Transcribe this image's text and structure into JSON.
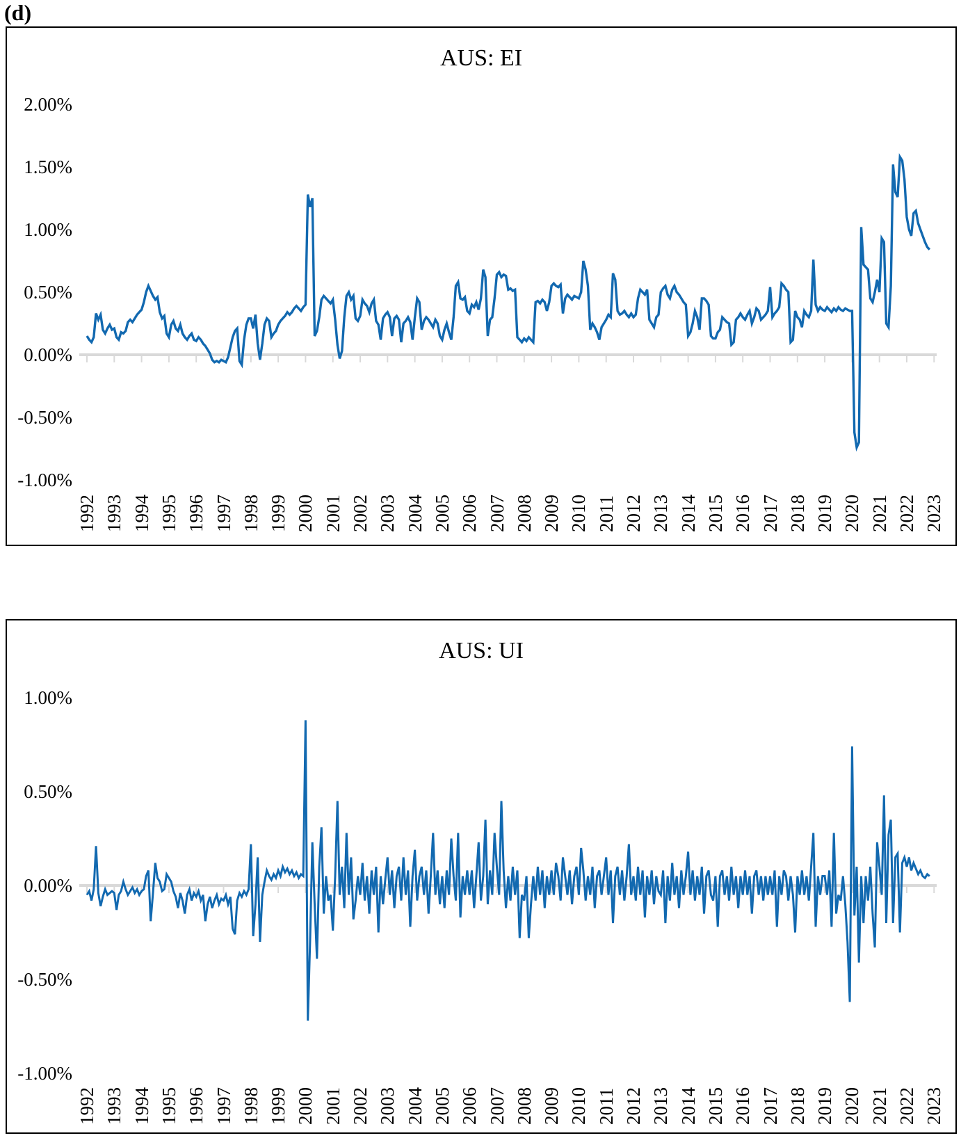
{
  "figure_label": "(d)",
  "colors": {
    "line": "#1269b0",
    "zero_axis": "#d9d9d9",
    "panel_border": "#000000",
    "text": "#000000"
  },
  "charts": [
    {
      "title": "AUS: EI",
      "y_ticks": [
        "2.00%",
        "1.50%",
        "1.00%",
        "0.50%",
        "0.00%",
        "-0.50%",
        "-1.00%"
      ],
      "x_ticks": [
        "1992",
        "1993",
        "1994",
        "1995",
        "1996",
        "1997",
        "1998",
        "1999",
        "2000",
        "2001",
        "2002",
        "2003",
        "2004",
        "2005",
        "2006",
        "2007",
        "2008",
        "2009",
        "2010",
        "2011",
        "2012",
        "2013",
        "2014",
        "2015",
        "2016",
        "2017",
        "2018",
        "2019",
        "2020",
        "2021",
        "2022",
        "2023"
      ]
    },
    {
      "title": "AUS: UI",
      "y_ticks": [
        "1.00%",
        "0.50%",
        "0.00%",
        "-0.50%",
        "-1.00%"
      ],
      "x_ticks": [
        "1992",
        "1993",
        "1994",
        "1995",
        "1996",
        "1997",
        "1998",
        "1999",
        "2000",
        "2001",
        "2002",
        "2003",
        "2004",
        "2005",
        "2006",
        "2007",
        "2008",
        "2009",
        "2010",
        "2011",
        "2012",
        "2013",
        "2014",
        "2015",
        "2016",
        "2017",
        "2018",
        "2019",
        "2020",
        "2021",
        "2022",
        "2023"
      ]
    }
  ],
  "chart_data": [
    {
      "type": "line",
      "title": "AUS: EI",
      "unit": "percent",
      "frequency": "monthly",
      "x_start": "1992-01",
      "x_end": "2022-11",
      "xlabel": "",
      "ylabel": "",
      "ylim": [
        -1.0,
        2.0
      ],
      "y_tick_values": [
        2.0,
        1.5,
        1.0,
        0.5,
        0.0,
        -0.5,
        -1.0
      ],
      "grid": false,
      "legend": "none",
      "values": [
        0.15,
        0.12,
        0.1,
        0.14,
        0.33,
        0.28,
        0.32,
        0.2,
        0.17,
        0.21,
        0.24,
        0.2,
        0.21,
        0.14,
        0.12,
        0.18,
        0.17,
        0.19,
        0.26,
        0.28,
        0.26,
        0.29,
        0.32,
        0.34,
        0.36,
        0.42,
        0.5,
        0.55,
        0.51,
        0.47,
        0.44,
        0.46,
        0.34,
        0.29,
        0.31,
        0.17,
        0.14,
        0.24,
        0.27,
        0.21,
        0.19,
        0.24,
        0.17,
        0.14,
        0.12,
        0.15,
        0.17,
        0.12,
        0.11,
        0.14,
        0.12,
        0.09,
        0.07,
        0.04,
        0.01,
        -0.04,
        -0.06,
        -0.05,
        -0.06,
        -0.04,
        -0.05,
        -0.06,
        -0.02,
        0.06,
        0.14,
        0.19,
        0.21,
        -0.05,
        -0.08,
        0.12,
        0.24,
        0.29,
        0.29,
        0.21,
        0.32,
        0.09,
        -0.04,
        0.09,
        0.24,
        0.29,
        0.27,
        0.14,
        0.17,
        0.19,
        0.24,
        0.27,
        0.29,
        0.31,
        0.34,
        0.32,
        0.34,
        0.37,
        0.39,
        0.37,
        0.35,
        0.38,
        0.4,
        1.28,
        1.18,
        1.25,
        0.15,
        0.19,
        0.3,
        0.44,
        0.47,
        0.45,
        0.43,
        0.41,
        0.44,
        0.28,
        0.08,
        -0.03,
        0.03,
        0.3,
        0.47,
        0.5,
        0.44,
        0.47,
        0.29,
        0.27,
        0.31,
        0.44,
        0.41,
        0.39,
        0.34,
        0.41,
        0.44,
        0.27,
        0.24,
        0.12,
        0.29,
        0.32,
        0.34,
        0.3,
        0.15,
        0.29,
        0.31,
        0.28,
        0.1,
        0.25,
        0.27,
        0.3,
        0.26,
        0.12,
        0.3,
        0.45,
        0.42,
        0.2,
        0.27,
        0.3,
        0.28,
        0.25,
        0.22,
        0.28,
        0.25,
        0.15,
        0.12,
        0.2,
        0.25,
        0.18,
        0.12,
        0.3,
        0.55,
        0.58,
        0.45,
        0.44,
        0.46,
        0.35,
        0.33,
        0.4,
        0.38,
        0.42,
        0.36,
        0.45,
        0.68,
        0.62,
        0.15,
        0.28,
        0.3,
        0.45,
        0.64,
        0.66,
        0.62,
        0.64,
        0.63,
        0.52,
        0.53,
        0.51,
        0.52,
        0.14,
        0.12,
        0.1,
        0.13,
        0.11,
        0.14,
        0.12,
        0.1,
        0.42,
        0.43,
        0.41,
        0.44,
        0.42,
        0.35,
        0.42,
        0.55,
        0.57,
        0.55,
        0.54,
        0.56,
        0.33,
        0.45,
        0.48,
        0.46,
        0.44,
        0.47,
        0.46,
        0.45,
        0.5,
        0.75,
        0.68,
        0.55,
        0.2,
        0.25,
        0.22,
        0.18,
        0.12,
        0.22,
        0.25,
        0.28,
        0.32,
        0.3,
        0.65,
        0.6,
        0.35,
        0.32,
        0.33,
        0.35,
        0.32,
        0.3,
        0.33,
        0.3,
        0.32,
        0.45,
        0.52,
        0.5,
        0.48,
        0.52,
        0.28,
        0.25,
        0.22,
        0.3,
        0.32,
        0.5,
        0.53,
        0.55,
        0.48,
        0.45,
        0.52,
        0.55,
        0.5,
        0.48,
        0.45,
        0.42,
        0.4,
        0.15,
        0.18,
        0.25,
        0.35,
        0.3,
        0.2,
        0.45,
        0.45,
        0.43,
        0.4,
        0.15,
        0.13,
        0.13,
        0.18,
        0.2,
        0.3,
        0.28,
        0.26,
        0.25,
        0.08,
        0.1,
        0.28,
        0.3,
        0.33,
        0.3,
        0.28,
        0.32,
        0.35,
        0.25,
        0.3,
        0.37,
        0.35,
        0.28,
        0.3,
        0.32,
        0.35,
        0.54,
        0.3,
        0.33,
        0.35,
        0.38,
        0.57,
        0.55,
        0.52,
        0.5,
        0.1,
        0.12,
        0.35,
        0.3,
        0.28,
        0.22,
        0.35,
        0.32,
        0.3,
        0.35,
        0.76,
        0.4,
        0.35,
        0.38,
        0.36,
        0.35,
        0.38,
        0.36,
        0.34,
        0.37,
        0.35,
        0.38,
        0.36,
        0.35,
        0.37,
        0.36,
        0.35,
        0.35,
        -0.62,
        -0.74,
        -0.7,
        1.02,
        0.72,
        0.7,
        0.68,
        0.45,
        0.42,
        0.5,
        0.6,
        0.5,
        0.93,
        0.9,
        0.25,
        0.22,
        0.55,
        1.52,
        1.3,
        1.26,
        1.58,
        1.55,
        1.4,
        1.1,
        1.0,
        0.95,
        1.13,
        1.15,
        1.05,
        1.0,
        0.95,
        0.9,
        0.86,
        0.84
      ]
    },
    {
      "type": "line",
      "title": "AUS: UI",
      "unit": "percent",
      "frequency": "monthly",
      "x_start": "1992-01",
      "x_end": "2022-11",
      "xlabel": "",
      "ylabel": "",
      "ylim": [
        -1.0,
        1.0
      ],
      "y_tick_values": [
        1.0,
        0.5,
        0.0,
        -0.5,
        -1.0
      ],
      "grid": false,
      "legend": "none",
      "values": [
        -0.05,
        -0.03,
        -0.08,
        -0.02,
        0.21,
        -0.04,
        -0.11,
        -0.06,
        -0.02,
        -0.05,
        -0.04,
        -0.03,
        -0.04,
        -0.13,
        -0.05,
        -0.03,
        0.02,
        -0.02,
        -0.05,
        -0.03,
        -0.01,
        -0.04,
        -0.02,
        -0.05,
        -0.03,
        -0.02,
        0.05,
        0.08,
        -0.19,
        -0.04,
        0.12,
        0.04,
        0.02,
        -0.03,
        -0.02,
        0.06,
        0.04,
        0.02,
        -0.03,
        -0.06,
        -0.12,
        -0.04,
        -0.08,
        -0.15,
        -0.05,
        -0.02,
        -0.08,
        -0.04,
        -0.06,
        -0.03,
        -0.08,
        -0.05,
        -0.19,
        -0.1,
        -0.06,
        -0.12,
        -0.08,
        -0.05,
        -0.1,
        -0.07,
        -0.08,
        -0.05,
        -0.1,
        -0.06,
        -0.23,
        -0.26,
        -0.08,
        -0.04,
        -0.06,
        -0.03,
        -0.05,
        -0.02,
        0.22,
        -0.27,
        -0.1,
        0.15,
        -0.3,
        -0.05,
        0.02,
        0.08,
        0.05,
        0.03,
        0.06,
        0.04,
        0.08,
        0.05,
        0.1,
        0.07,
        0.09,
        0.06,
        0.08,
        0.05,
        0.07,
        0.04,
        0.06,
        0.05,
        0.88,
        -0.72,
        -0.3,
        0.23,
        -0.1,
        -0.39,
        0.1,
        0.31,
        -0.15,
        0.05,
        -0.08,
        -0.05,
        -0.24,
        0.05,
        0.45,
        -0.05,
        0.1,
        -0.12,
        0.28,
        -0.05,
        0.15,
        -0.18,
        -0.08,
        0.05,
        -0.05,
        0.12,
        -0.08,
        0.05,
        -0.15,
        0.08,
        -0.05,
        0.1,
        -0.25,
        0.05,
        -0.1,
        0.03,
        0.15,
        -0.05,
        0.08,
        -0.12,
        0.05,
        0.1,
        -0.08,
        0.15,
        -0.05,
        0.08,
        -0.22,
        0.05,
        0.19,
        -0.08,
        0.05,
        0.1,
        -0.05,
        0.08,
        -0.15,
        0.05,
        0.28,
        -0.05,
        0.08,
        -0.1,
        0.05,
        -0.12,
        0.08,
        -0.05,
        0.25,
        0.05,
        -0.08,
        0.28,
        -0.17,
        0.05,
        -0.05,
        0.08,
        -0.05,
        0.08,
        -0.12,
        0.05,
        0.23,
        -0.08,
        0.05,
        0.35,
        -0.1,
        0.08,
        -0.05,
        0.28,
        0.1,
        -0.05,
        0.45,
        0.08,
        -0.12,
        0.05,
        -0.08,
        0.1,
        -0.05,
        0.08,
        -0.28,
        -0.05,
        -0.08,
        0.05,
        -0.28,
        -0.1,
        0.05,
        -0.08,
        0.1,
        -0.05,
        0.08,
        -0.12,
        0.05,
        -0.05,
        0.08,
        -0.05,
        0.12,
        0.05,
        -0.08,
        0.15,
        0.05,
        -0.05,
        0.08,
        -0.1,
        0.05,
        0.1,
        -0.05,
        0.2,
        0.08,
        -0.08,
        0.05,
        -0.05,
        0.1,
        -0.12,
        0.05,
        0.08,
        -0.05,
        0.05,
        0.15,
        -0.05,
        0.08,
        -0.2,
        0.05,
        0.1,
        -0.05,
        0.08,
        -0.08,
        0.05,
        0.22,
        -0.05,
        0.05,
        -0.08,
        0.1,
        -0.05,
        0.08,
        -0.17,
        0.05,
        -0.05,
        0.08,
        -0.1,
        0.05,
        -0.03,
        -0.05,
        0.08,
        -0.2,
        0.05,
        -0.08,
        0.12,
        -0.05,
        0.05,
        -0.12,
        0.08,
        -0.05,
        0.05,
        0.18,
        -0.05,
        0.08,
        -0.08,
        0.05,
        -0.05,
        0.1,
        -0.15,
        0.05,
        0.08,
        -0.05,
        -0.08,
        0.05,
        -0.22,
        0.05,
        0.08,
        -0.05,
        0.05,
        -0.08,
        0.1,
        -0.05,
        0.05,
        -0.12,
        0.05,
        -0.05,
        0.08,
        -0.05,
        0.05,
        -0.15,
        0.05,
        0.08,
        -0.05,
        0.05,
        -0.08,
        0.05,
        -0.05,
        0.05,
        -0.05,
        0.08,
        -0.22,
        0.05,
        -0.05,
        0.08,
        0.05,
        -0.08,
        0.05,
        -0.05,
        -0.25,
        0.05,
        -0.05,
        0.08,
        -0.05,
        0.05,
        -0.08,
        0.1,
        0.28,
        -0.22,
        0.05,
        -0.05,
        0.05,
        0.05,
        -0.05,
        0.08,
        -0.22,
        0.28,
        -0.15,
        -0.05,
        -0.08,
        0.05,
        -0.1,
        -0.3,
        -0.62,
        0.74,
        -0.16,
        0.1,
        -0.41,
        0.05,
        -0.2,
        0.05,
        -0.08,
        0.1,
        -0.15,
        -0.33,
        0.23,
        0.1,
        -0.05,
        0.48,
        -0.2,
        0.27,
        0.35,
        -0.2,
        0.15,
        0.17,
        -0.25,
        0.12,
        0.15,
        0.1,
        0.15,
        0.08,
        0.12,
        0.09,
        0.06,
        0.08,
        0.05,
        0.04,
        0.06,
        0.05
      ]
    }
  ]
}
